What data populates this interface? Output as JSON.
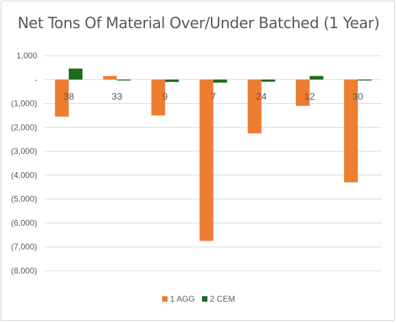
{
  "chart_data": {
    "type": "bar",
    "title": "Net Tons Of Material Over/Under Batched (1 Year)",
    "categories": [
      "38",
      "33",
      "9",
      "7",
      "24",
      "12",
      "30"
    ],
    "series": [
      {
        "name": "1 AGG",
        "color": "#ED7D31",
        "values": [
          -1550,
          150,
          -1500,
          -6750,
          -2250,
          -1100,
          -4300
        ]
      },
      {
        "name": "2 CEM",
        "color": "#1E6B1E",
        "values": [
          460,
          -40,
          -100,
          -130,
          -90,
          150,
          -40
        ]
      }
    ],
    "ylim": [
      -8000,
      1000
    ],
    "yticks": [
      1000,
      0,
      -1000,
      -2000,
      -3000,
      -4000,
      -5000,
      -6000,
      -7000,
      -8000
    ],
    "ytick_labels": [
      "1,000",
      "-",
      "(1,000)",
      "(2,000)",
      "(3,000)",
      "(4,000)",
      "(5,000)",
      "(6,000)",
      "(7,000)",
      "(8,000)"
    ],
    "gridlines": true,
    "legend_position": "bottom",
    "category_labels_position": "at zero line"
  }
}
